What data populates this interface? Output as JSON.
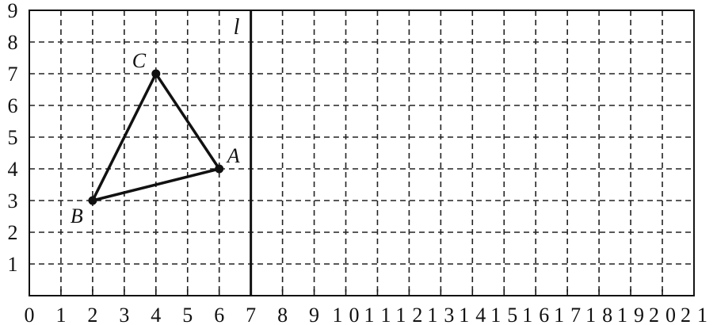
{
  "grid": {
    "x_range": [
      0,
      21
    ],
    "y_range": [
      0,
      9
    ],
    "x_tick_labels": [
      "0",
      "1",
      "2",
      "3",
      "4",
      "5",
      "6",
      "7",
      "8",
      "9",
      "10",
      "11",
      "12",
      "13",
      "14",
      "15",
      "16",
      "17",
      "18",
      "19",
      "20",
      "21"
    ],
    "y_tick_labels": [
      "1",
      "2",
      "3",
      "4",
      "5",
      "6",
      "7",
      "8",
      "9"
    ],
    "gridlines": "dashed"
  },
  "line_l": {
    "label": "l",
    "x": 7
  },
  "triangle": {
    "points": [
      {
        "label": "A",
        "x": 6,
        "y": 4
      },
      {
        "label": "B",
        "x": 2,
        "y": 3
      },
      {
        "label": "C",
        "x": 4,
        "y": 7
      }
    ]
  },
  "colors": {
    "ink": "#111111",
    "background": "#ffffff"
  }
}
